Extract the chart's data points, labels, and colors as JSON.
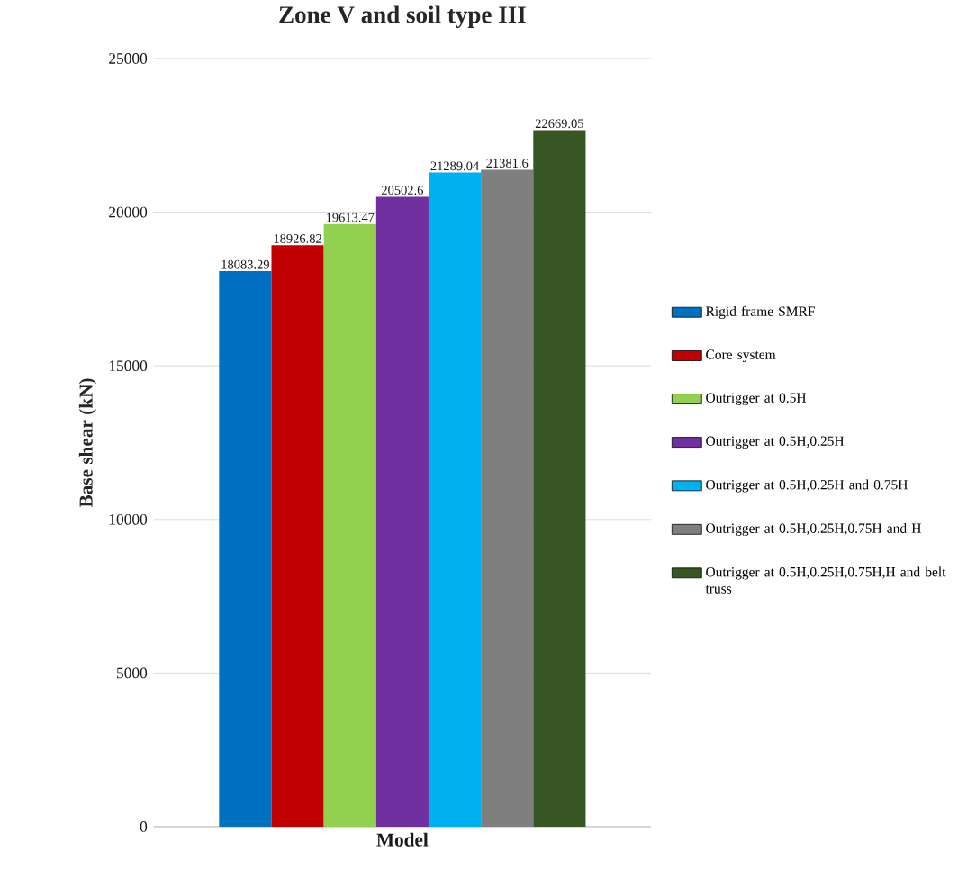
{
  "chart_data": {
    "type": "bar",
    "title": "Zone V and soil type III",
    "ylabel": "Base shear (kN)",
    "categories": [
      "Model"
    ],
    "series": [
      {
        "name": "Rigid frame SMRF",
        "color": "#0070c0",
        "values": [
          18083.29
        ]
      },
      {
        "name": "Core system",
        "color": "#c00000",
        "values": [
          18926.82
        ]
      },
      {
        "name": "Outrigger at 0.5H",
        "color": "#92d050",
        "values": [
          19613.47
        ]
      },
      {
        "name": "Outrigger at 0.5H,0.25H",
        "color": "#7030a0",
        "values": [
          20502.6
        ]
      },
      {
        "name": "Outrigger at 0.5H,0.25H and 0.75H",
        "color": "#00b0f0",
        "values": [
          21289.04
        ]
      },
      {
        "name": "Outrigger at 0.5H,0.25H,0.75H and H",
        "color": "#7f7f7f",
        "values": [
          21381.6
        ]
      },
      {
        "name": "Outrigger at 0.5H,0.25H,0.75H,H and belt truss",
        "color": "#375623",
        "values": [
          22669.05
        ]
      }
    ],
    "ylim": [
      0,
      25000
    ],
    "yticks": [
      0,
      5000,
      10000,
      15000,
      20000,
      25000
    ],
    "grid": "y",
    "legend": "right",
    "data_labels": true
  }
}
